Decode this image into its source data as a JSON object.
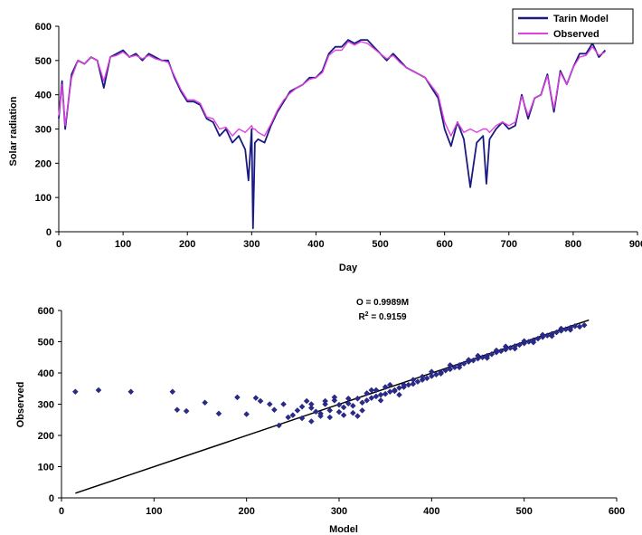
{
  "colors": {
    "model": "#1a1a80",
    "observed": "#e040e0",
    "marker": "#2a2a8c",
    "fit": "#000000"
  },
  "chart_data": [
    {
      "type": "line",
      "xlabel": "Day",
      "ylabel": "Solar radiation",
      "xlim": [
        0,
        900
      ],
      "ylim": [
        0,
        600
      ],
      "xticks": [
        "0",
        "100",
        "200",
        "300",
        "400",
        "500",
        "600",
        "700",
        "800",
        "900"
      ],
      "yticks": [
        "0",
        "100",
        "200",
        "300",
        "400",
        "500",
        "600"
      ],
      "legend_position": "top-right",
      "series": [
        {
          "name": "Tarin Model",
          "x": [
            0,
            5,
            10,
            20,
            30,
            40,
            50,
            60,
            70,
            80,
            90,
            100,
            110,
            120,
            130,
            140,
            150,
            160,
            170,
            180,
            190,
            200,
            210,
            220,
            230,
            240,
            250,
            260,
            270,
            280,
            290,
            295,
            300,
            302,
            305,
            310,
            320,
            330,
            340,
            350,
            360,
            370,
            380,
            390,
            400,
            410,
            420,
            430,
            440,
            450,
            460,
            470,
            480,
            490,
            500,
            510,
            520,
            530,
            540,
            550,
            560,
            570,
            580,
            590,
            600,
            610,
            620,
            630,
            640,
            650,
            660,
            665,
            670,
            680,
            690,
            700,
            710,
            720,
            730,
            740,
            750,
            760,
            770,
            780,
            790,
            800,
            810,
            820,
            830,
            840,
            850
          ],
          "y": [
            330,
            440,
            300,
            460,
            500,
            490,
            510,
            500,
            420,
            510,
            520,
            530,
            510,
            520,
            500,
            520,
            510,
            500,
            500,
            450,
            410,
            380,
            380,
            370,
            330,
            320,
            280,
            300,
            260,
            280,
            240,
            150,
            300,
            10,
            260,
            270,
            260,
            310,
            350,
            380,
            410,
            420,
            430,
            450,
            450,
            470,
            520,
            540,
            540,
            560,
            550,
            560,
            560,
            540,
            520,
            500,
            520,
            500,
            480,
            470,
            460,
            450,
            420,
            390,
            300,
            250,
            320,
            270,
            130,
            260,
            280,
            140,
            270,
            300,
            320,
            300,
            310,
            400,
            330,
            390,
            400,
            460,
            350,
            470,
            430,
            480,
            520,
            520,
            550,
            510,
            530
          ]
        },
        {
          "name": "Observed",
          "x": [
            0,
            5,
            10,
            20,
            30,
            40,
            50,
            60,
            70,
            80,
            90,
            100,
            110,
            120,
            130,
            140,
            150,
            160,
            170,
            180,
            190,
            200,
            210,
            220,
            230,
            240,
            250,
            260,
            270,
            280,
            290,
            295,
            300,
            302,
            305,
            310,
            320,
            330,
            340,
            350,
            360,
            370,
            380,
            390,
            400,
            410,
            420,
            430,
            440,
            450,
            460,
            470,
            480,
            490,
            500,
            510,
            520,
            530,
            540,
            550,
            560,
            570,
            580,
            590,
            600,
            610,
            620,
            630,
            640,
            650,
            660,
            665,
            670,
            680,
            690,
            700,
            710,
            720,
            730,
            740,
            750,
            760,
            770,
            780,
            790,
            800,
            810,
            820,
            830,
            840,
            850
          ],
          "y": [
            340,
            430,
            310,
            450,
            500,
            490,
            510,
            500,
            440,
            510,
            515,
            525,
            510,
            515,
            505,
            515,
            505,
            500,
            495,
            455,
            415,
            385,
            385,
            375,
            335,
            330,
            300,
            305,
            280,
            300,
            290,
            300,
            310,
            300,
            300,
            290,
            280,
            315,
            355,
            385,
            405,
            420,
            430,
            445,
            450,
            465,
            515,
            530,
            530,
            555,
            545,
            555,
            550,
            535,
            520,
            505,
            515,
            495,
            480,
            470,
            460,
            450,
            425,
            400,
            320,
            280,
            320,
            290,
            300,
            290,
            300,
            300,
            290,
            310,
            320,
            310,
            320,
            395,
            340,
            390,
            400,
            455,
            360,
            465,
            430,
            480,
            510,
            515,
            540,
            515,
            525
          ]
        }
      ]
    },
    {
      "type": "scatter",
      "xlabel": "Model",
      "ylabel": "Observed",
      "xlim": [
        0,
        600
      ],
      "ylim": [
        0,
        600
      ],
      "xticks": [
        "0",
        "100",
        "200",
        "300",
        "400",
        "500",
        "600"
      ],
      "yticks": [
        "0",
        "100",
        "200",
        "300",
        "400",
        "500",
        "600"
      ],
      "annotation_line1": "O = 0.9989M",
      "annotation_r2_prefix": "R",
      "annotation_r2_sup": "2",
      "annotation_r2_value": " = 0.9159",
      "fit": {
        "slope": 0.9989,
        "x_range": [
          15,
          570
        ]
      },
      "points": [
        [
          15,
          340
        ],
        [
          40,
          345
        ],
        [
          75,
          340
        ],
        [
          120,
          340
        ],
        [
          125,
          282
        ],
        [
          135,
          278
        ],
        [
          155,
          305
        ],
        [
          170,
          270
        ],
        [
          190,
          322
        ],
        [
          200,
          268
        ],
        [
          210,
          320
        ],
        [
          215,
          310
        ],
        [
          225,
          300
        ],
        [
          230,
          282
        ],
        [
          235,
          232
        ],
        [
          240,
          300
        ],
        [
          245,
          258
        ],
        [
          250,
          265
        ],
        [
          255,
          280
        ],
        [
          260,
          292
        ],
        [
          265,
          310
        ],
        [
          270,
          300
        ],
        [
          275,
          276
        ],
        [
          280,
          270
        ],
        [
          285,
          300
        ],
        [
          290,
          258
        ],
        [
          295,
          312
        ],
        [
          300,
          275
        ],
        [
          305,
          290
        ],
        [
          310,
          318
        ],
        [
          315,
          272
        ],
        [
          320,
          262
        ],
        [
          325,
          305
        ],
        [
          330,
          312
        ],
        [
          335,
          320
        ],
        [
          340,
          325
        ],
        [
          345,
          330
        ],
        [
          350,
          333
        ],
        [
          355,
          340
        ],
        [
          360,
          345
        ],
        [
          365,
          352
        ],
        [
          370,
          355
        ],
        [
          375,
          362
        ],
        [
          380,
          365
        ],
        [
          385,
          372
        ],
        [
          390,
          378
        ],
        [
          395,
          383
        ],
        [
          400,
          390
        ],
        [
          405,
          395
        ],
        [
          410,
          402
        ],
        [
          415,
          408
        ],
        [
          420,
          412
        ],
        [
          425,
          418
        ],
        [
          430,
          425
        ],
        [
          435,
          430
        ],
        [
          440,
          436
        ],
        [
          445,
          440
        ],
        [
          450,
          446
        ],
        [
          455,
          450
        ],
        [
          460,
          455
        ],
        [
          465,
          460
        ],
        [
          470,
          466
        ],
        [
          475,
          470
        ],
        [
          480,
          475
        ],
        [
          485,
          480
        ],
        [
          490,
          486
        ],
        [
          495,
          490
        ],
        [
          500,
          495
        ],
        [
          505,
          500
        ],
        [
          510,
          505
        ],
        [
          515,
          510
        ],
        [
          520,
          515
        ],
        [
          525,
          520
        ],
        [
          530,
          525
        ],
        [
          535,
          530
        ],
        [
          540,
          535
        ],
        [
          545,
          540
        ],
        [
          550,
          545
        ],
        [
          555,
          550
        ],
        [
          565,
          553
        ],
        [
          260,
          255
        ],
        [
          270,
          245
        ],
        [
          280,
          262
        ],
        [
          290,
          280
        ],
        [
          300,
          298
        ],
        [
          310,
          302
        ],
        [
          320,
          318
        ],
        [
          330,
          335
        ],
        [
          340,
          345
        ],
        [
          350,
          355
        ],
        [
          360,
          342
        ],
        [
          370,
          362
        ],
        [
          380,
          378
        ],
        [
          390,
          388
        ],
        [
          400,
          404
        ],
        [
          410,
          398
        ],
        [
          420,
          425
        ],
        [
          430,
          418
        ],
        [
          440,
          442
        ],
        [
          450,
          455
        ],
        [
          460,
          448
        ],
        [
          470,
          472
        ],
        [
          480,
          485
        ],
        [
          490,
          478
        ],
        [
          500,
          502
        ],
        [
          510,
          498
        ],
        [
          520,
          522
        ],
        [
          530,
          518
        ],
        [
          540,
          542
        ],
        [
          550,
          538
        ],
        [
          560,
          548
        ],
        [
          270,
          288
        ],
        [
          285,
          310
        ],
        [
          295,
          322
        ],
        [
          305,
          265
        ],
        [
          315,
          295
        ],
        [
          325,
          280
        ],
        [
          335,
          345
        ],
        [
          345,
          312
        ],
        [
          355,
          362
        ],
        [
          365,
          330
        ]
      ]
    }
  ]
}
